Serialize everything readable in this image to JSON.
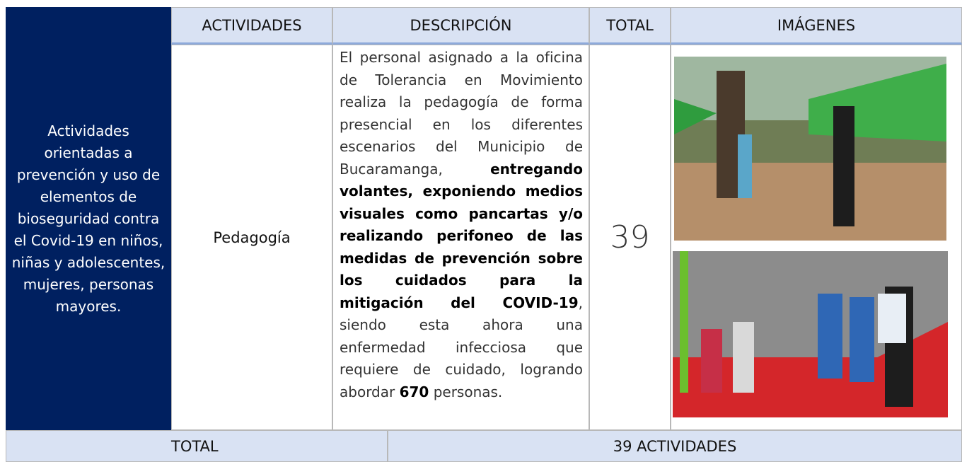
{
  "header": {
    "activities": "ACTIVIDADES",
    "description": "DESCRIPCIÓN",
    "total": "TOTAL",
    "images": "IMÁGENES"
  },
  "row": {
    "category": "Actividades orientadas a prevención y uso de elementos de bioseguridad contra el Covid-19 en niños, niñas y adolescentes, mujeres, personas mayores.",
    "activity": "Pedagogía",
    "description": [
      {
        "text": "El personal asignado a la oficina de Tolerancia en Movimiento realiza la pedagogía de forma presencial en los diferentes escenarios del Municipio de Bucaramanga, ",
        "bold": false
      },
      {
        "text": "entregando volantes, exponiendo medios visuales como pancartas y/o realizando perifoneo de las medidas de prevención sobre los cuidados para la mitigación del COVID-19",
        "bold": true
      },
      {
        "text": ", siendo esta ahora una enfermedad infecciosa que requiere de cuidado, logrando abordar ",
        "bold": false
      },
      {
        "text": "670",
        "bold": true
      },
      {
        "text": " personas.",
        "bold": false
      }
    ],
    "total": 39
  },
  "footer": {
    "label": "TOTAL",
    "value": "39 ACTIVIDADES"
  }
}
